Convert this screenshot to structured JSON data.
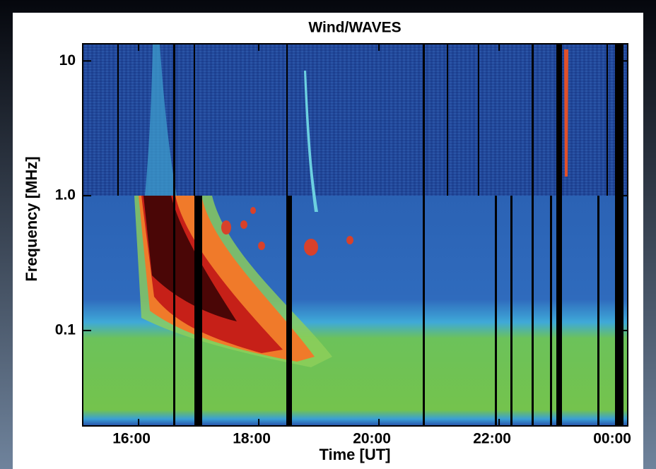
{
  "chart_data": {
    "type": "spectrogram",
    "title": "Wind/WAVES",
    "x_label": "Time [UT]",
    "y_label": "Frequency [MHz]",
    "xlim": [
      15.07,
      24.14
    ],
    "xticks": [
      {
        "value": 16,
        "label": "16:00"
      },
      {
        "value": 18,
        "label": "18:00"
      },
      {
        "value": 20,
        "label": "20:00"
      },
      {
        "value": 22,
        "label": "22:00"
      },
      {
        "value": 24,
        "label": "00:00"
      }
    ],
    "ylim": [
      0.0196,
      13.4
    ],
    "yticks": [
      0.1,
      {
        "value": 1,
        "label": "1.0"
      },
      10
    ],
    "y_log": true
  }
}
